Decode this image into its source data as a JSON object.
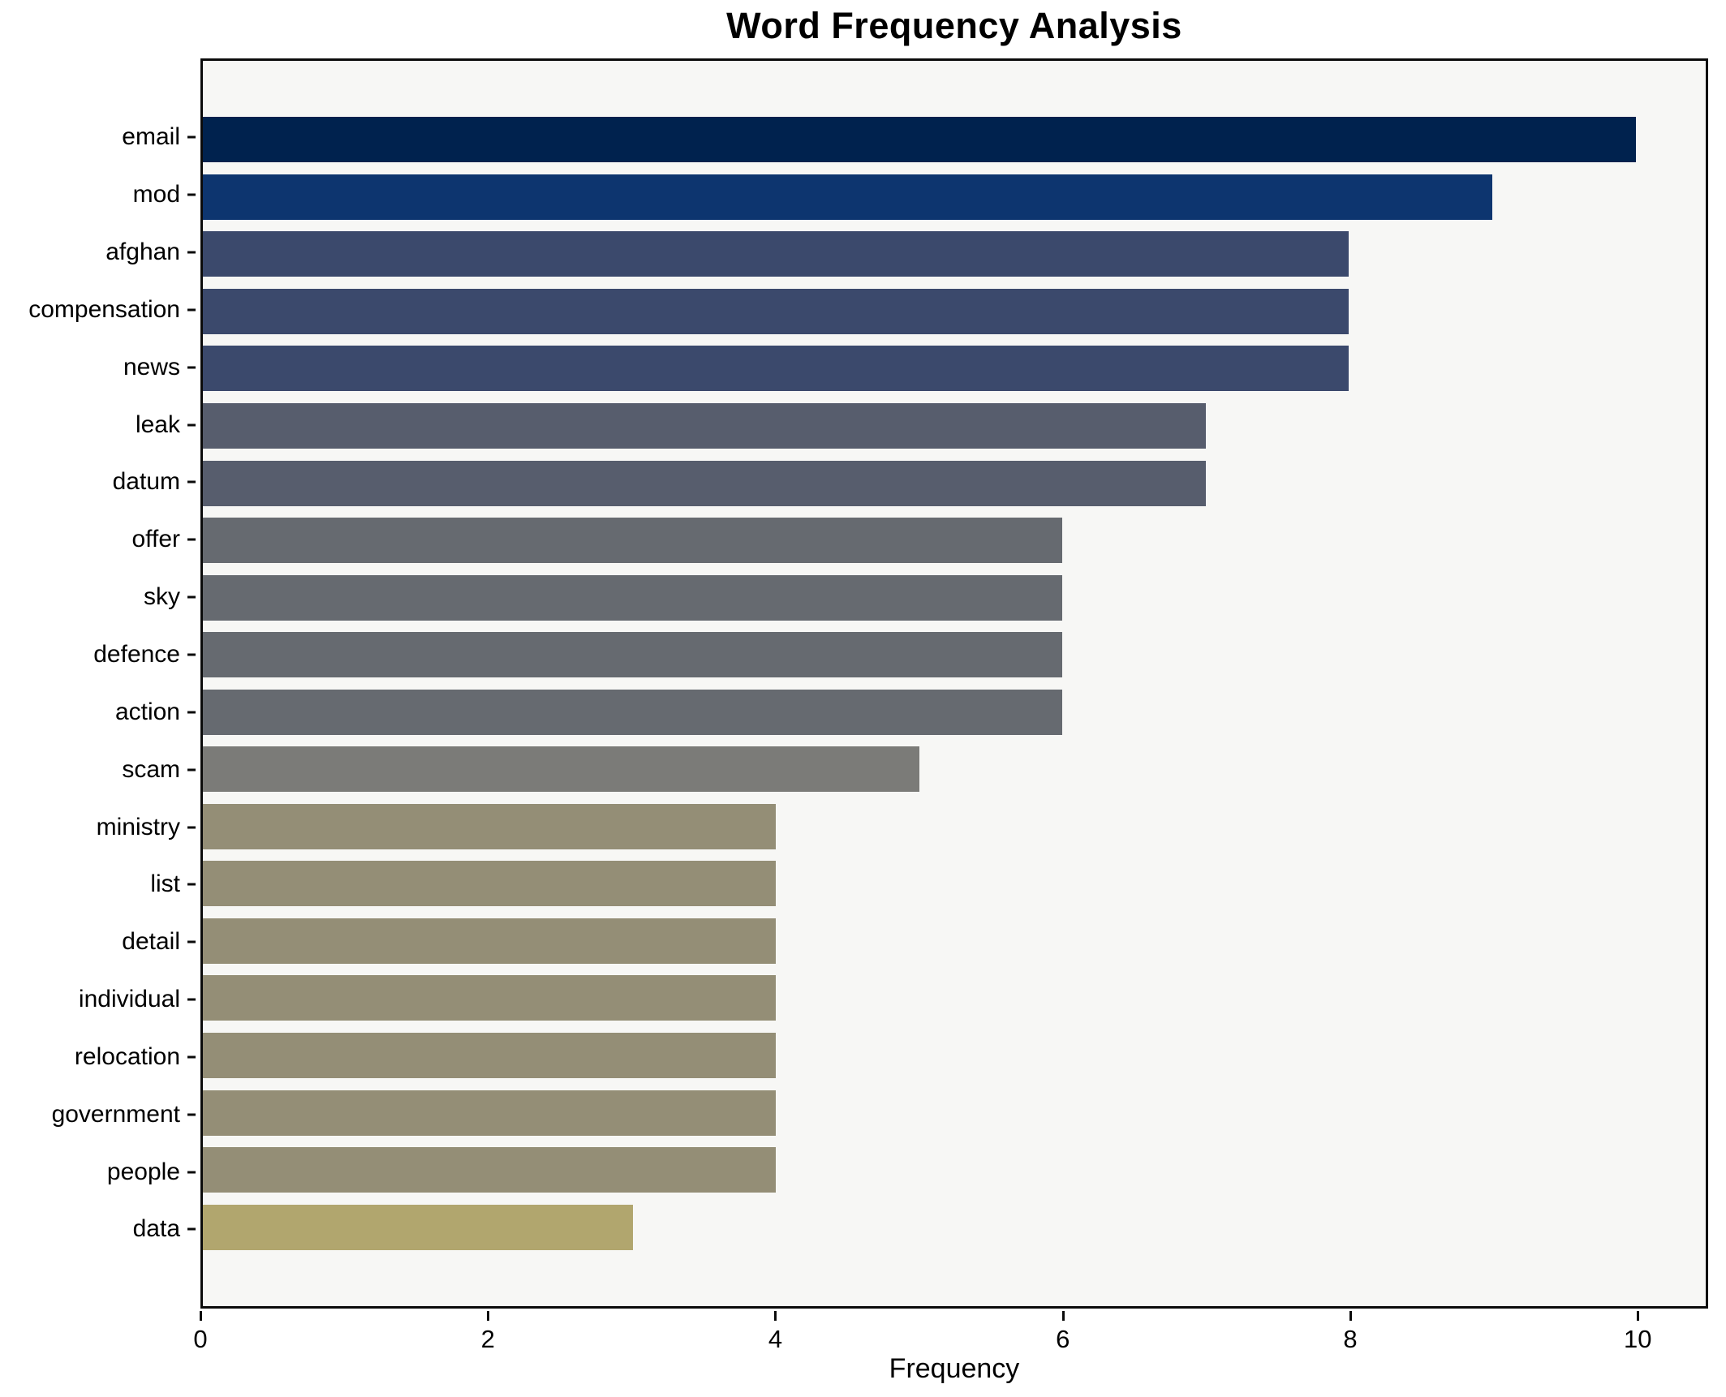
{
  "title": "Word Frequency Analysis",
  "axis": {
    "xlabel": "Frequency"
  },
  "colors": {
    "figure_bg": "#ffffff",
    "plot_bg": "#f7f7f5",
    "spine": "#0b0b0b",
    "text": "#000000"
  },
  "chart_data": {
    "type": "bar",
    "orientation": "horizontal",
    "title": "Word Frequency Analysis",
    "xlabel": "Frequency",
    "ylabel": "",
    "categories": [
      "email",
      "mod",
      "afghan",
      "compensation",
      "news",
      "leak",
      "datum",
      "offer",
      "sky",
      "defence",
      "action",
      "scam",
      "ministry",
      "list",
      "detail",
      "individual",
      "relocation",
      "government",
      "people",
      "data"
    ],
    "values": [
      10,
      9,
      8,
      8,
      8,
      7,
      7,
      6,
      6,
      6,
      6,
      5,
      4,
      4,
      4,
      4,
      4,
      4,
      4,
      3
    ],
    "bar_colors": [
      "#00224e",
      "#0d356f",
      "#3b496c",
      "#3b496c",
      "#3b496c",
      "#575d6d",
      "#575d6d",
      "#666a70",
      "#666a70",
      "#666a70",
      "#666a70",
      "#7b7b78",
      "#948e76",
      "#948e76",
      "#948e76",
      "#948e76",
      "#948e76",
      "#948e76",
      "#948e76",
      "#b1a66e"
    ],
    "xlim": [
      0,
      10.49
    ],
    "xticks": [
      0,
      2,
      4,
      6,
      8,
      10
    ],
    "grid": false,
    "legend": null
  }
}
